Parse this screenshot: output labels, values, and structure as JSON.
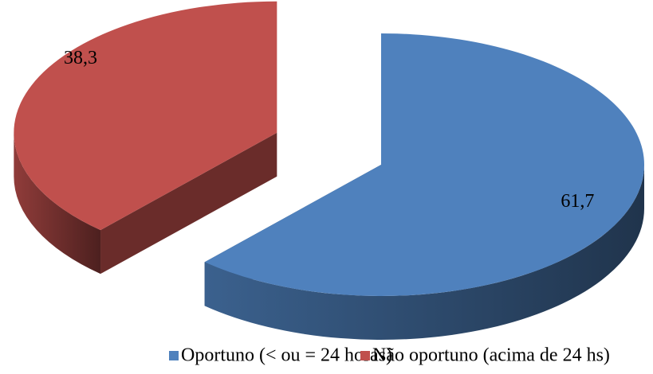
{
  "chart_data": {
    "type": "pie",
    "categories": [
      "Oportuno (< ou = 24 horas)",
      "Não oportuno (acima de 24 hs)"
    ],
    "values": [
      61.7,
      38.3
    ],
    "value_labels": [
      "61,7",
      "38,3"
    ],
    "colors": [
      "#4f81bd",
      "#c0504d"
    ],
    "legend": "bottom"
  }
}
